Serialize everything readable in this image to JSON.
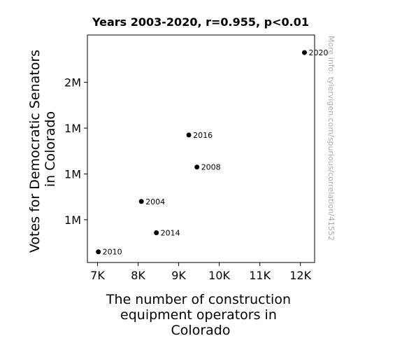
{
  "chart_data": {
    "type": "scatter",
    "title": "Years 2003-2020, r=0.955, p<0.01",
    "xlabel": [
      "The number of construction",
      "equipment operators in",
      "Colorado"
    ],
    "ylabel": [
      "Votes for Democratic Senators",
      "in Colorado"
    ],
    "xlim": [
      6750,
      12350
    ],
    "ylim": [
      720000,
      2210000
    ],
    "x_ticks": [
      {
        "value": 7000,
        "label": "7K"
      },
      {
        "value": 8000,
        "label": "8K"
      },
      {
        "value": 9000,
        "label": "9K"
      },
      {
        "value": 10000,
        "label": "10K"
      },
      {
        "value": 11000,
        "label": "11K"
      },
      {
        "value": 12000,
        "label": "12K"
      }
    ],
    "y_ticks": [
      {
        "value": 1000000,
        "label": "1M"
      },
      {
        "value": 1300000,
        "label": "1M"
      },
      {
        "value": 1600000,
        "label": "1M"
      },
      {
        "value": 1900000,
        "label": "2M"
      }
    ],
    "points": [
      {
        "x": 7020,
        "y": 790000,
        "label": "2010"
      },
      {
        "x": 8080,
        "y": 1120000,
        "label": "2004"
      },
      {
        "x": 8450,
        "y": 915000,
        "label": "2014"
      },
      {
        "x": 9250,
        "y": 1555000,
        "label": "2016"
      },
      {
        "x": 9450,
        "y": 1345000,
        "label": "2008"
      },
      {
        "x": 12100,
        "y": 2095000,
        "label": "2020"
      }
    ],
    "grid": false,
    "marker_color": "#000000"
  },
  "watermark": "More info: tylervigen.com/spurious/correlation/41552"
}
